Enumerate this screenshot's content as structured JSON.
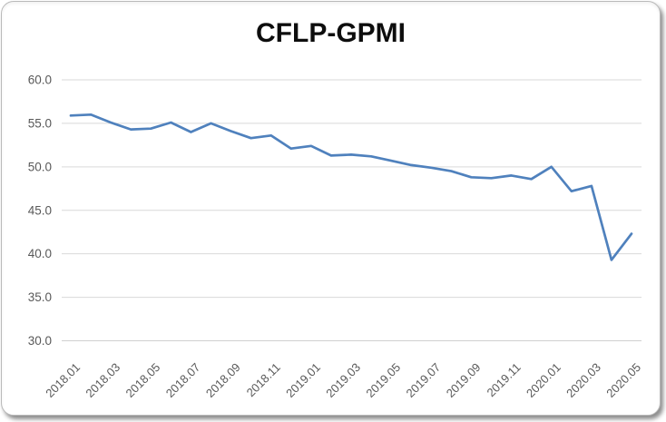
{
  "chart_data": {
    "type": "line",
    "title": "CFLP-GPMI",
    "xlabel": "",
    "ylabel": "",
    "ylim": [
      30.0,
      60.0
    ],
    "y_ticks": [
      60.0,
      55.0,
      50.0,
      45.0,
      40.0,
      35.0,
      30.0
    ],
    "y_tick_labels": [
      "60.0",
      "55.0",
      "50.0",
      "45.0",
      "40.0",
      "35.0",
      "30.0"
    ],
    "grid": "horizontal-only",
    "legend": "none",
    "categories": [
      "2018.01",
      "2018.02",
      "2018.03",
      "2018.04",
      "2018.05",
      "2018.06",
      "2018.07",
      "2018.08",
      "2018.09",
      "2018.10",
      "2018.11",
      "2018.12",
      "2019.01",
      "2019.02",
      "2019.03",
      "2019.04",
      "2019.05",
      "2019.06",
      "2019.07",
      "2019.08",
      "2019.09",
      "2019.10",
      "2019.11",
      "2019.12",
      "2020.01",
      "2020.02",
      "2020.03",
      "2020.04",
      "2020.05"
    ],
    "x_tick_labels": [
      "2018.01",
      "2018.03",
      "2018.05",
      "2018.07",
      "2018.09",
      "2018.11",
      "2019.01",
      "2019.03",
      "2019.05",
      "2019.07",
      "2019.09",
      "2019.11",
      "2020.01",
      "2020.03",
      "2020.05"
    ],
    "series": [
      {
        "name": "CFLP-GPMI",
        "values": [
          55.9,
          56.0,
          55.1,
          54.3,
          54.4,
          55.1,
          54.0,
          55.0,
          54.1,
          53.3,
          53.6,
          52.1,
          52.4,
          51.3,
          51.4,
          51.2,
          50.7,
          50.2,
          49.9,
          49.5,
          48.8,
          48.7,
          49.0,
          48.6,
          50.0,
          47.2,
          47.8,
          39.3,
          42.3
        ]
      }
    ],
    "colors": {
      "line": "#4F81BD",
      "gridline": "#D9D9D9",
      "axis_line": "#D0D0D0",
      "axis_text": "#595959",
      "title_text": "#0D0D0D",
      "frame_border": "#B9B9B9",
      "background": "#FFFFFF"
    }
  }
}
